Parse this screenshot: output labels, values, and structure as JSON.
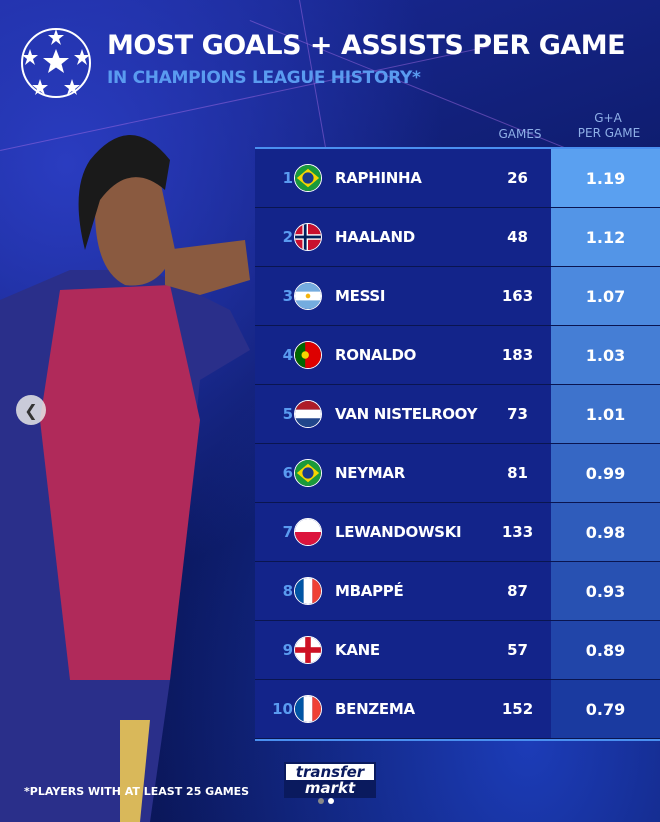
{
  "header": {
    "title": "MOST GOALS + ASSISTS PER GAME",
    "subtitle": "IN CHAMPIONS LEAGUE HISTORY*",
    "logo": "champions-league-starball"
  },
  "columns": {
    "games": "GAMES",
    "ga_line1": "G+A",
    "ga_line2": "PER GAME"
  },
  "rows": [
    {
      "rank": "1",
      "flag": "brazil",
      "name": "RAPHINHA",
      "games": "26",
      "ga": "1.19"
    },
    {
      "rank": "2",
      "flag": "norway",
      "name": "HAALAND",
      "games": "48",
      "ga": "1.12"
    },
    {
      "rank": "3",
      "flag": "argentina",
      "name": "MESSI",
      "games": "163",
      "ga": "1.07"
    },
    {
      "rank": "4",
      "flag": "portugal",
      "name": "RONALDO",
      "games": "183",
      "ga": "1.03"
    },
    {
      "rank": "5",
      "flag": "netherlands",
      "name": "VAN NISTELROOY",
      "games": "73",
      "ga": "1.01"
    },
    {
      "rank": "6",
      "flag": "brazil",
      "name": "NEYMAR",
      "games": "81",
      "ga": "0.99"
    },
    {
      "rank": "7",
      "flag": "poland",
      "name": "LEWANDOWSKI",
      "games": "133",
      "ga": "0.98"
    },
    {
      "rank": "8",
      "flag": "france",
      "name": "MBAPPÉ",
      "games": "87",
      "ga": "0.93"
    },
    {
      "rank": "9",
      "flag": "england",
      "name": "KANE",
      "games": "57",
      "ga": "0.89"
    },
    {
      "rank": "10",
      "flag": "france",
      "name": "BENZEMA",
      "games": "152",
      "ga": "0.79"
    }
  ],
  "footnote": "*PLAYERS WITH AT LEAST 25 GAMES",
  "brand": {
    "line1": "transfer",
    "line2": "markt"
  },
  "carousel": {
    "prev_icon": "chevron-left-icon",
    "pages": 2,
    "active": 2
  },
  "colors": {
    "accent": "#4a8ff0",
    "row": "#13248a",
    "value_top": "#5aa0f0",
    "value_bottom": "#1a3aa0"
  }
}
